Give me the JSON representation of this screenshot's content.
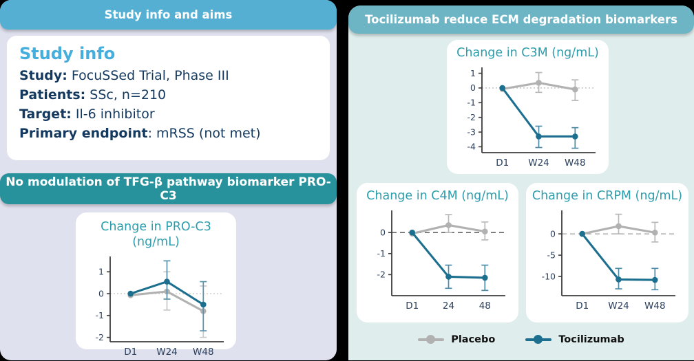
{
  "left_panel": {
    "header": "Study info and aims",
    "study_card": {
      "heading": "Study info",
      "rows": [
        {
          "label": "Study:",
          "value": " FocuSSed Trial, Phase III"
        },
        {
          "label": "Patients:",
          "value": " SSc, n=210"
        },
        {
          "label": "Target:",
          "value": " Il-6 inhibitor"
        },
        {
          "label": "Primary endpoint",
          "value": ": mRSS (not met)"
        }
      ]
    },
    "sub_header": "No modulation of TFG-β pathway biomarker PRO-C3"
  },
  "right_panel": {
    "header": "Tocilizumab reduce ECM degradation biomarkers"
  },
  "legend": {
    "items": [
      {
        "label": "Placebo",
        "color": "#b1b1b1"
      },
      {
        "label": "Tocilizumab",
        "color": "#1c6f8e"
      }
    ]
  },
  "colors": {
    "page_background": "#000000",
    "left_panel_background": "#e0e1ee",
    "right_panel_background": "#dfedec",
    "left_header_background": "#54afd3",
    "sub_header_background": "#27929b",
    "right_header_background": "#6db5c5",
    "card_background": "#ffffff",
    "study_heading": "#45aedd",
    "body_text": "#14395f",
    "chart_title": "#2d9dac",
    "placebo": "#b1b1b1",
    "tocilizumab": "#1c6f8e",
    "axis": "#3d3d3d"
  },
  "chart_data": [
    {
      "type": "line",
      "id": "pro-c3",
      "title": "Change in PRO-C3 (ng/mL)",
      "x_labels": [
        "D1",
        "W24",
        "W48"
      ],
      "yticks": [
        1,
        0,
        -1,
        -2
      ],
      "ylim": [
        -2.2,
        1.7
      ],
      "grid": false,
      "zero_line": {
        "color": "#c8c8c8",
        "dash": "2 3"
      },
      "series": [
        {
          "name": "Placebo",
          "color": "#b1b1b1",
          "err_color": "#c9c9c9",
          "values": [
            -0.07,
            0.1,
            -0.8
          ],
          "err_lo": [
            null,
            -0.75,
            -2.0
          ],
          "err_hi": [
            null,
            1.0,
            0.35
          ]
        },
        {
          "name": "Tocilizumab",
          "color": "#1c6f8e",
          "err_color": "#5b93ab",
          "values": [
            0,
            0.55,
            -0.5
          ],
          "err_lo": [
            null,
            -0.25,
            -1.7
          ],
          "err_hi": [
            null,
            1.5,
            0.55
          ]
        }
      ]
    },
    {
      "type": "line",
      "id": "c3m",
      "title": "Change in C3M (ng/mL)",
      "x_labels": [
        "D1",
        "W24",
        "W48"
      ],
      "yticks": [
        1,
        0,
        -1,
        -2,
        -3,
        -4
      ],
      "ylim": [
        -4.4,
        1.4
      ],
      "grid": false,
      "zero_line": {
        "color": "#bdbdbd",
        "dash": "2 3"
      },
      "series": [
        {
          "name": "Placebo",
          "color": "#b1b1b1",
          "err_color": "#b9b9b9",
          "values": [
            -0.07,
            0.35,
            -0.1
          ],
          "err_lo": [
            null,
            -0.3,
            -0.85
          ],
          "err_hi": [
            null,
            1.05,
            0.55
          ]
        },
        {
          "name": "Tocilizumab",
          "color": "#1c6f8e",
          "err_color": "#4d8ba8",
          "values": [
            0,
            -3.3,
            -3.3
          ],
          "err_lo": [
            null,
            -4.05,
            -4.1
          ],
          "err_hi": [
            null,
            -2.6,
            -2.7
          ]
        }
      ]
    },
    {
      "type": "line",
      "id": "c4m",
      "title": "Change in C4M (ng/mL)",
      "x_labels": [
        "D1",
        "24",
        "48"
      ],
      "yticks": [
        0,
        -1,
        -2
      ],
      "ylim": [
        -3.0,
        1.05
      ],
      "grid": false,
      "zero_line": {
        "color": "#3b3b3b",
        "dash": "7 5"
      },
      "series": [
        {
          "name": "Placebo",
          "color": "#b1b1b1",
          "err_color": "#b9b9b9",
          "values": [
            -0.05,
            0.35,
            0.05
          ],
          "err_lo": [
            null,
            0.0,
            -0.35
          ],
          "err_hi": [
            null,
            0.85,
            0.5
          ]
        },
        {
          "name": "Tocilizumab",
          "color": "#1c6f8e",
          "err_color": "#4d8ba8",
          "values": [
            0,
            -2.1,
            -2.15
          ],
          "err_lo": [
            null,
            -2.65,
            -2.75
          ],
          "err_hi": [
            null,
            -1.55,
            -1.55
          ]
        }
      ]
    },
    {
      "type": "line",
      "id": "crpm",
      "title": "Change in CRPM (ng/mL)",
      "x_labels": [
        "D1",
        "W24",
        "W48"
      ],
      "yticks": [
        0,
        -5,
        -10
      ],
      "ylim": [
        -14.5,
        5.5
      ],
      "grid": false,
      "zero_line": {
        "color": "#9e9e9e",
        "dash": "7 5"
      },
      "series": [
        {
          "name": "Placebo",
          "color": "#b1b1b1",
          "err_color": "#b9b9b9",
          "values": [
            0,
            1.8,
            0.3
          ],
          "err_lo": [
            null,
            0.0,
            -1.9
          ],
          "err_hi": [
            null,
            4.6,
            2.7
          ]
        },
        {
          "name": "Tocilizumab",
          "color": "#1c6f8e",
          "err_color": "#4d8ba8",
          "values": [
            0,
            -10.7,
            -10.8
          ],
          "err_lo": [
            null,
            -12.9,
            -13.1
          ],
          "err_hi": [
            null,
            -8.1,
            -8.1
          ]
        }
      ]
    }
  ]
}
